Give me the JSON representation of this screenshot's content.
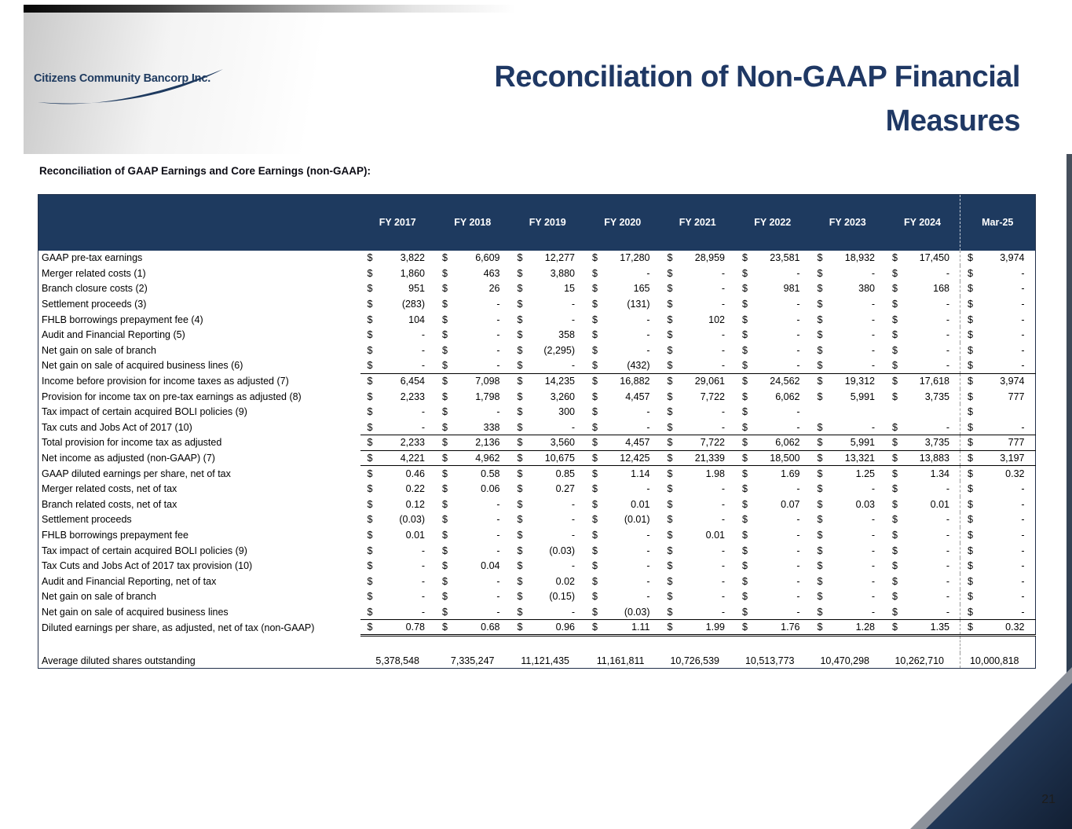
{
  "slide": {
    "logo_text": "Citizens Community Bancorp Inc.",
    "title_line1": "Reconciliation of Non-GAAP Financial",
    "title_line2": "Measures",
    "subtitle": "Reconciliation of GAAP Earnings and Core Earnings (non-GAAP):",
    "page_number": "21",
    "accent_color": "#1F3864"
  },
  "table": {
    "columns": [
      "FY 2017",
      "FY 2018",
      "FY 2019",
      "FY 2020",
      "FY 2021",
      "FY 2022",
      "FY 2023",
      "FY 2024",
      "Mar-25"
    ],
    "currency_symbol": "$",
    "rows": [
      {
        "label": "GAAP pre-tax earnings",
        "type": "money",
        "values": [
          "3,822",
          "6,609",
          "12,277",
          "17,280",
          "28,959",
          "23,581",
          "18,932",
          "17,450",
          "3,974"
        ]
      },
      {
        "label": "Merger related costs (1)",
        "type": "money",
        "values": [
          "1,860",
          "463",
          "3,880",
          "-",
          "-",
          "-",
          "-",
          "-",
          "-"
        ]
      },
      {
        "label": "Branch closure costs (2)",
        "type": "money",
        "values": [
          "951",
          "26",
          "15",
          "165",
          "-",
          "981",
          "380",
          "168",
          "-"
        ]
      },
      {
        "label": "Settlement proceeds (3)",
        "type": "money",
        "values": [
          "(283)",
          "-",
          "-",
          "(131)",
          "-",
          "-",
          "-",
          "-",
          "-"
        ]
      },
      {
        "label": "FHLB borrowings prepayment fee (4)",
        "type": "money",
        "values": [
          "104",
          "-",
          "-",
          "-",
          "102",
          "-",
          "-",
          "-",
          "-"
        ]
      },
      {
        "label": "Audit and Financial Reporting (5)",
        "type": "money",
        "values": [
          "-",
          "-",
          "358",
          "-",
          "-",
          "-",
          "-",
          "-",
          "-"
        ]
      },
      {
        "label": "Net gain on sale of branch",
        "type": "money",
        "values": [
          "-",
          "-",
          "(2,295)",
          "-",
          "-",
          "-",
          "-",
          "-",
          "-"
        ]
      },
      {
        "label": "Net gain on sale of acquired business lines (6)",
        "type": "money",
        "underline": "single",
        "values": [
          "-",
          "-",
          "-",
          "(432)",
          "-",
          "-",
          "-",
          "-",
          "-"
        ]
      },
      {
        "label": "Income before provision for income taxes as adjusted (7)",
        "type": "money",
        "values": [
          "6,454",
          "7,098",
          "14,235",
          "16,882",
          "29,061",
          "24,562",
          "19,312",
          "17,618",
          "3,974"
        ]
      },
      {
        "label": "Provision for income tax on pre-tax earnings as adjusted (8)",
        "type": "money",
        "values": [
          "2,233",
          "1,798",
          "3,260",
          "4,457",
          "7,722",
          "6,062",
          "5,991",
          "3,735",
          "777"
        ]
      },
      {
        "label": "Tax impact of certain acquired BOLI policies (9)",
        "type": "money",
        "values": [
          "-",
          "-",
          "300",
          "-",
          "-",
          "-",
          "",
          "",
          ""
        ],
        "no_dollar": [
          6,
          7
        ]
      },
      {
        "label": "Tax cuts and Jobs Act of 2017 (10)",
        "type": "money",
        "underline": "single",
        "values": [
          "-",
          "338",
          "-",
          "-",
          "-",
          "-",
          "-",
          "-",
          "-"
        ]
      },
      {
        "label": "Total provision for income tax as adjusted",
        "type": "money",
        "underline": "single",
        "values": [
          "2,233",
          "2,136",
          "3,560",
          "4,457",
          "7,722",
          "6,062",
          "5,991",
          "3,735",
          "777"
        ]
      },
      {
        "label": "Net income as adjusted  (non-GAAP) (7)",
        "type": "money",
        "underline": "single",
        "values": [
          "4,221",
          "4,962",
          "10,675",
          "12,425",
          "21,339",
          "18,500",
          "13,321",
          "13,883",
          "3,197"
        ]
      },
      {
        "label": "GAAP diluted earnings per share, net of tax",
        "type": "money",
        "values": [
          "0.46",
          "0.58",
          "0.85",
          "1.14",
          "1.98",
          "1.69",
          "1.25",
          "1.34",
          "0.32"
        ]
      },
      {
        "label": "Merger related costs, net of tax",
        "type": "money",
        "values": [
          "0.22",
          "0.06",
          "0.27",
          "-",
          "-",
          "-",
          "-",
          "-",
          "-"
        ]
      },
      {
        "label": "Branch related costs, net of tax",
        "type": "money",
        "values": [
          "0.12",
          "-",
          "-",
          "0.01",
          "-",
          "0.07",
          "0.03",
          "0.01",
          "-"
        ]
      },
      {
        "label": "Settlement proceeds",
        "type": "money",
        "values": [
          "(0.03)",
          "-",
          "-",
          "(0.01)",
          "-",
          "-",
          "-",
          "-",
          "-"
        ]
      },
      {
        "label": "FHLB borrowings prepayment fee",
        "type": "money",
        "values": [
          "0.01",
          "-",
          "-",
          "-",
          "0.01",
          "-",
          "-",
          "-",
          "-"
        ]
      },
      {
        "label": "Tax impact of certain acquired BOLI policies (9)",
        "type": "money",
        "values": [
          "-",
          "-",
          "(0.03)",
          "-",
          "-",
          "-",
          "-",
          "-",
          "-"
        ]
      },
      {
        "label": "Tax Cuts and Jobs Act of 2017 tax provision (10)",
        "type": "money",
        "values": [
          "-",
          "0.04",
          "-",
          "-",
          "-",
          "-",
          "-",
          "-",
          "-"
        ]
      },
      {
        "label": "Audit and Financial Reporting, net of tax",
        "type": "money",
        "values": [
          "-",
          "-",
          "0.02",
          "-",
          "-",
          "-",
          "-",
          "-",
          "-"
        ]
      },
      {
        "label": "Net gain on sale of branch",
        "type": "money",
        "values": [
          "-",
          "-",
          "(0.15)",
          "-",
          "-",
          "-",
          "-",
          "-",
          "-"
        ]
      },
      {
        "label": "Net gain on sale of acquired business lines",
        "type": "money",
        "underline": "single",
        "values": [
          "-",
          "-",
          "-",
          "(0.03)",
          "-",
          "-",
          "-",
          "-",
          "-"
        ]
      },
      {
        "label": "Diluted earnings per share, as adjusted, net of tax (non-GAAP)",
        "type": "money",
        "underline": "double",
        "values": [
          "0.78",
          "0.68",
          "0.96",
          "1.11",
          "1.99",
          "1.76",
          "1.28",
          "1.35",
          "0.32"
        ]
      },
      {
        "label": "",
        "type": "spacer",
        "values": [
          "",
          "",
          "",
          "",
          "",
          "",
          "",
          "",
          ""
        ]
      },
      {
        "label": "Average diluted shares outstanding",
        "type": "shares",
        "values": [
          "5,378,548",
          "7,335,247",
          "11,121,435",
          "11,161,811",
          "10,726,539",
          "10,513,773",
          "10,470,298",
          "10,262,710",
          "10,000,818"
        ]
      }
    ]
  }
}
